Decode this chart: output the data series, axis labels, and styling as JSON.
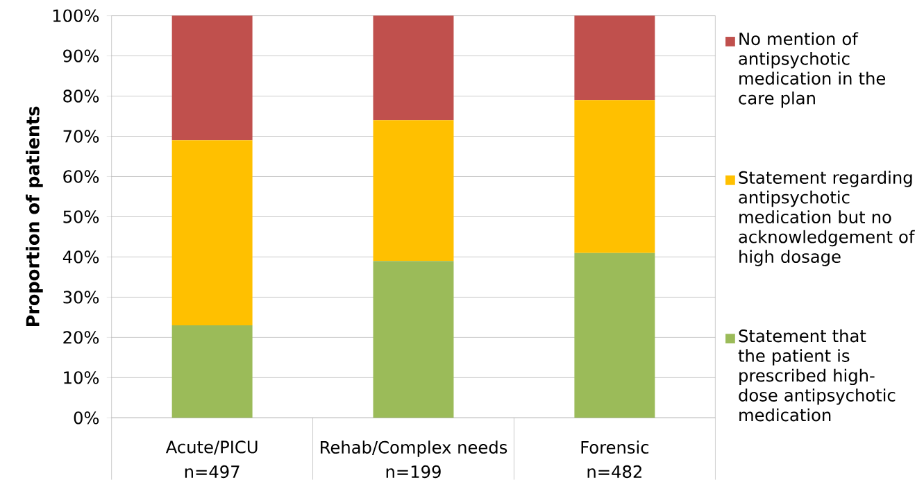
{
  "chart_data": {
    "type": "bar",
    "stacked": true,
    "ylabel": "Proportion of patients",
    "categories": [
      "Acute/PICU",
      "Rehab/Complex needs",
      "Forensic"
    ],
    "series": [
      {
        "name": "Statement that the patient is prescribed high-dose antipsychotic medication",
        "color": "#9bbb59",
        "values": [
          23,
          39,
          41
        ]
      },
      {
        "name": "Statement regarding antipsychotic medication but no acknowledgement of high dosage",
        "color": "#ffc000",
        "values": [
          46,
          35,
          38
        ]
      },
      {
        "name": "No mention of antipsychotic medication in the care plan",
        "color": "#c0504d",
        "values": [
          31,
          26,
          21
        ]
      }
    ],
    "ylim": [
      0,
      100
    ],
    "yticks": [
      {
        "value": 0,
        "label": "0%"
      },
      {
        "value": 10,
        "label": "10%"
      },
      {
        "value": 20,
        "label": "20%"
      },
      {
        "value": 30,
        "label": "30%"
      },
      {
        "value": 40,
        "label": "40%"
      },
      {
        "value": 50,
        "label": "50%"
      },
      {
        "value": 60,
        "label": "60%"
      },
      {
        "value": 70,
        "label": "70%"
      },
      {
        "value": 80,
        "label": "80%"
      },
      {
        "value": 90,
        "label": "90%"
      },
      {
        "value": 100,
        "label": "100%"
      }
    ],
    "grid": "y",
    "legend": "right",
    "annotations": [
      "n=497",
      "n=199",
      "n=482"
    ]
  }
}
